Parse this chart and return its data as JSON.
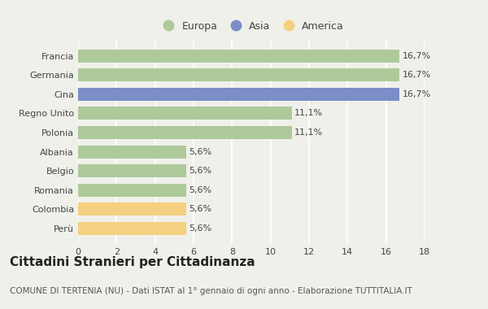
{
  "categories": [
    "Francia",
    "Germania",
    "Cina",
    "Regno Unito",
    "Polonia",
    "Albania",
    "Belgio",
    "Romania",
    "Colombia",
    "Perù"
  ],
  "values": [
    16.7,
    16.7,
    16.7,
    11.1,
    11.1,
    5.6,
    5.6,
    5.6,
    5.6,
    5.6
  ],
  "colors": [
    "#aec99a",
    "#aec99a",
    "#7b8ec8",
    "#aec99a",
    "#aec99a",
    "#aec99a",
    "#aec99a",
    "#aec99a",
    "#f5d080",
    "#f5d080"
  ],
  "labels": [
    "16,7%",
    "16,7%",
    "16,7%",
    "11,1%",
    "11,1%",
    "5,6%",
    "5,6%",
    "5,6%",
    "5,6%",
    "5,6%"
  ],
  "legend_labels": [
    "Europa",
    "Asia",
    "America"
  ],
  "legend_colors": [
    "#aec99a",
    "#7b8ec8",
    "#f5d080"
  ],
  "xlim": [
    0,
    18
  ],
  "xticks": [
    0,
    2,
    4,
    6,
    8,
    10,
    12,
    14,
    16,
    18
  ],
  "title": "Cittadini Stranieri per Cittadinanza",
  "subtitle": "COMUNE DI TERTENIA (NU) - Dati ISTAT al 1° gennaio di ogni anno - Elaborazione TUTTITALIA.IT",
  "background_color": "#f0f0eb",
  "grid_color": "#ffffff",
  "bar_height": 0.68,
  "title_fontsize": 11,
  "subtitle_fontsize": 7.5,
  "label_fontsize": 8,
  "tick_fontsize": 8,
  "legend_fontsize": 9
}
